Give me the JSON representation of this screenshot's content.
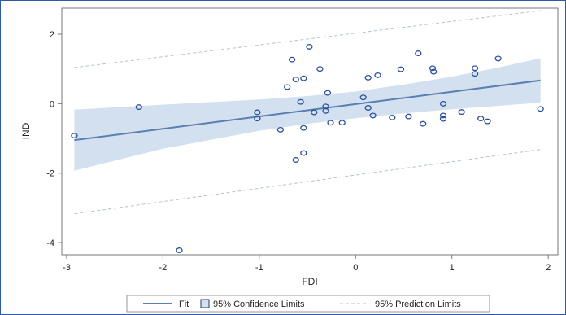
{
  "chart_data": {
    "type": "scatter",
    "title": "",
    "xlabel": "FDI",
    "ylabel": "IND",
    "xlim": [
      -3.05,
      2.1
    ],
    "ylim": [
      -4.35,
      2.75
    ],
    "xticks": [
      -3,
      -2,
      -1,
      0,
      1,
      2
    ],
    "yticks": [
      -4,
      -2,
      0,
      2
    ],
    "grid": false,
    "legend_position": "bottom",
    "colors": {
      "points": "#2a4fa0",
      "fit": "#5a7fb0",
      "confidence_band": "#d3e0f0",
      "prediction_limits": "#b5c2d2",
      "frame": "#777777",
      "outer_border": "#2d5aa0"
    },
    "fit": {
      "name": "Fit",
      "x": [
        -2.92,
        1.92
      ],
      "y": [
        -1.05,
        0.67
      ]
    },
    "confidence_band": {
      "name": "95% Confidence Limits",
      "x": [
        -2.92,
        -2.0,
        -1.0,
        -0.5,
        0.0,
        0.5,
        1.0,
        1.5,
        1.92
      ],
      "lower": [
        -1.93,
        -1.3,
        -0.78,
        -0.58,
        -0.42,
        -0.28,
        -0.16,
        -0.06,
        0.03
      ],
      "upper": [
        -0.17,
        -0.03,
        0.12,
        0.22,
        0.35,
        0.55,
        0.78,
        1.05,
        1.31
      ]
    },
    "prediction_limits": {
      "name": "95% Prediction Limits",
      "x": [
        -2.92,
        1.92
      ],
      "lower": [
        -3.17,
        -1.32
      ],
      "upper": [
        1.04,
        2.68
      ]
    },
    "points": [
      {
        "x": -2.92,
        "y": -0.92
      },
      {
        "x": -2.25,
        "y": -0.1
      },
      {
        "x": -1.83,
        "y": -4.22
      },
      {
        "x": -1.02,
        "y": -0.25
      },
      {
        "x": -1.02,
        "y": -0.43
      },
      {
        "x": -0.78,
        "y": -0.75
      },
      {
        "x": -0.71,
        "y": 0.48
      },
      {
        "x": -0.66,
        "y": 1.27
      },
      {
        "x": -0.62,
        "y": 0.7
      },
      {
        "x": -0.62,
        "y": -1.62
      },
      {
        "x": -0.57,
        "y": 0.05
      },
      {
        "x": -0.54,
        "y": 0.73
      },
      {
        "x": -0.54,
        "y": -0.7
      },
      {
        "x": -0.54,
        "y": -1.42
      },
      {
        "x": -0.48,
        "y": 1.64
      },
      {
        "x": -0.43,
        "y": -0.25
      },
      {
        "x": -0.37,
        "y": 1.0
      },
      {
        "x": -0.31,
        "y": -0.08
      },
      {
        "x": -0.31,
        "y": -0.21
      },
      {
        "x": -0.29,
        "y": 0.31
      },
      {
        "x": -0.26,
        "y": -0.55
      },
      {
        "x": -0.14,
        "y": -0.55
      },
      {
        "x": 0.08,
        "y": 0.18
      },
      {
        "x": 0.13,
        "y": -0.12
      },
      {
        "x": 0.13,
        "y": 0.75
      },
      {
        "x": 0.18,
        "y": -0.34
      },
      {
        "x": 0.23,
        "y": 0.82
      },
      {
        "x": 0.38,
        "y": -0.4
      },
      {
        "x": 0.47,
        "y": 0.99
      },
      {
        "x": 0.55,
        "y": -0.37
      },
      {
        "x": 0.65,
        "y": 1.45
      },
      {
        "x": 0.7,
        "y": -0.58
      },
      {
        "x": 0.8,
        "y": 1.02
      },
      {
        "x": 0.81,
        "y": 0.92
      },
      {
        "x": 0.91,
        "y": 0.0
      },
      {
        "x": 0.91,
        "y": -0.34
      },
      {
        "x": 0.91,
        "y": -0.44
      },
      {
        "x": 1.1,
        "y": -0.24
      },
      {
        "x": 1.24,
        "y": 1.02
      },
      {
        "x": 1.24,
        "y": 0.86
      },
      {
        "x": 1.3,
        "y": -0.43
      },
      {
        "x": 1.37,
        "y": -0.51
      },
      {
        "x": 1.48,
        "y": 1.3
      },
      {
        "x": 1.92,
        "y": -0.15
      }
    ],
    "legend": [
      {
        "label": "Fit",
        "kind": "line"
      },
      {
        "label": "95% Confidence Limits",
        "kind": "box"
      },
      {
        "label": "95% Prediction Limits",
        "kind": "dashed"
      }
    ]
  }
}
